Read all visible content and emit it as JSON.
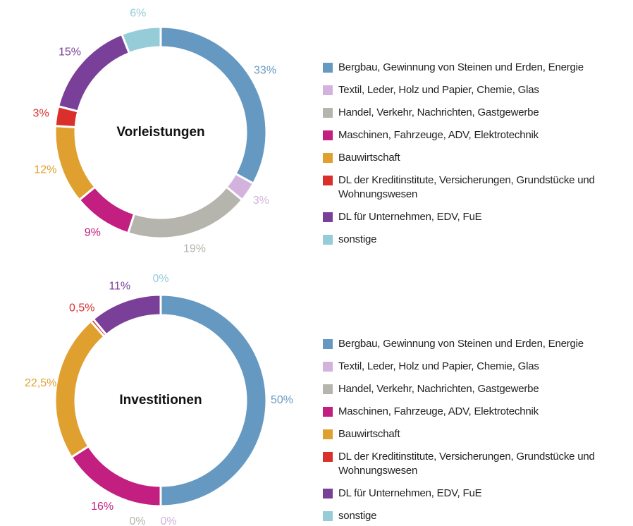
{
  "chart_data": [
    {
      "type": "donut",
      "title": "Vorleistungen",
      "categories": [
        "Bergbau, Gewinnung von Steinen und Erden, Energie",
        "Textil, Leder, Holz und Papier, Chemie, Glas",
        "Handel, Verkehr, Nachrichten, Gastgewerbe",
        "Maschinen, Fahrzeuge, ADV, Elektrotechnik",
        "Bauwirtschaft",
        "DL der Kreditinstitute, Versicherungen, Grundstücke und Wohnungswesen",
        "DL für Unternehmen, EDV, FuE",
        "sonstige"
      ],
      "values": [
        33,
        3,
        19,
        9,
        12,
        3,
        15,
        6
      ],
      "value_labels": [
        "33%",
        "3%",
        "19%",
        "9%",
        "12%",
        "3%",
        "15%",
        "6%"
      ],
      "colors": [
        "#6699c2",
        "#d3b3dd",
        "#b5b5ad",
        "#c21f80",
        "#e0a030",
        "#d9302c",
        "#7a3f98",
        "#96ccd8"
      ]
    },
    {
      "type": "donut",
      "title": "Investitionen",
      "categories": [
        "Bergbau, Gewinnung von Steinen und Erden, Energie",
        "Textil, Leder, Holz und Papier, Chemie, Glas",
        "Handel, Verkehr, Nachrichten, Gastgewerbe",
        "Maschinen, Fahrzeuge, ADV, Elektrotechnik",
        "Bauwirtschaft",
        "DL der Kreditinstitute, Versicherungen, Grundstücke und Wohnungswesen",
        "DL für Unternehmen, EDV, FuE",
        "sonstige"
      ],
      "values": [
        50,
        0,
        0,
        16,
        22.5,
        0.5,
        11,
        0
      ],
      "value_labels": [
        "50%",
        "0%",
        "0%",
        "16%",
        "22,5%",
        "0,5%",
        "11%",
        "0%"
      ],
      "colors": [
        "#6699c2",
        "#d3b3dd",
        "#b5b5ad",
        "#c21f80",
        "#e0a030",
        "#d9302c",
        "#7a3f98",
        "#96ccd8"
      ]
    }
  ]
}
